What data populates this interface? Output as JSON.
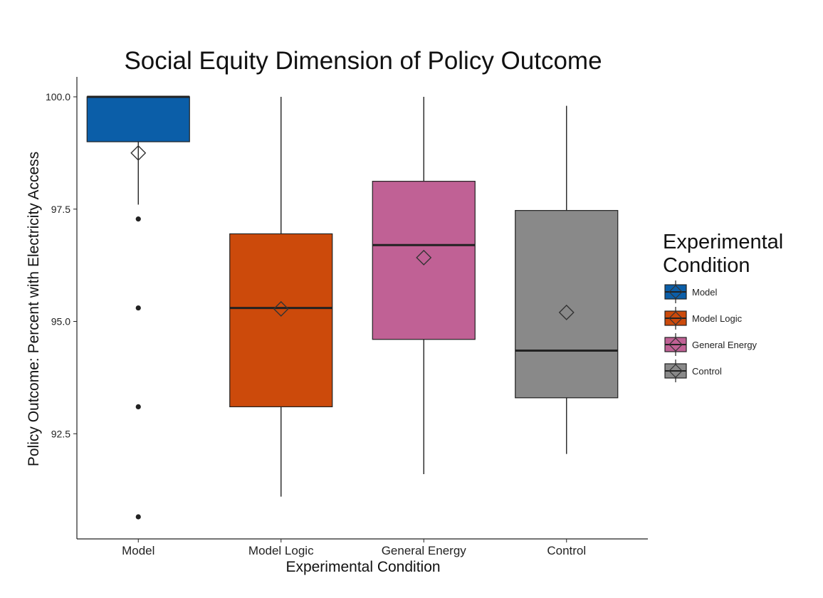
{
  "chart_data": {
    "type": "boxplot",
    "title": "Social Equity Dimension of Policy Outcome",
    "xlabel": "Experimental Condition",
    "ylabel": "Policy Outcome: Percent with Electricity Access",
    "ylim": [
      90.3,
      100.4
    ],
    "yticks": [
      "92.5",
      "95.0",
      "97.5",
      "100.0"
    ],
    "grid": false,
    "legend_position": "right",
    "legend_title": [
      "Experimental",
      "Condition"
    ],
    "categories": [
      "Model",
      "Model Logic",
      "General Energy",
      "Control"
    ],
    "series": [
      {
        "name": "Model",
        "color": "#0b5ea8",
        "whisker_low": 97.6,
        "q1": 99.0,
        "median": 100.0,
        "q3": 100.0,
        "whisker_high": 100.0,
        "mean": 98.75,
        "outliers": [
          97.28,
          95.3,
          93.1,
          90.65
        ]
      },
      {
        "name": "Model Logic",
        "color": "#cc4a0b",
        "whisker_low": 91.1,
        "q1": 93.1,
        "median": 95.3,
        "q3": 96.95,
        "whisker_high": 100.0,
        "mean": 95.28,
        "outliers": []
      },
      {
        "name": "General Energy",
        "color": "#c06195",
        "whisker_low": 91.6,
        "q1": 94.6,
        "median": 96.7,
        "q3": 98.12,
        "whisker_high": 100.0,
        "mean": 96.42,
        "outliers": []
      },
      {
        "name": "Control",
        "color": "#898989",
        "whisker_low": 92.05,
        "q1": 93.3,
        "median": 94.35,
        "q3": 97.47,
        "whisker_high": 99.8,
        "mean": 95.2,
        "outliers": []
      }
    ]
  }
}
